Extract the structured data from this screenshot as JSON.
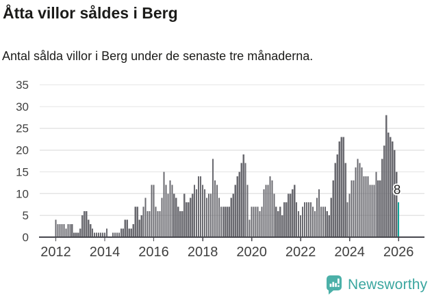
{
  "header": {
    "title": "Åtta villor såldes i Berg",
    "subtitle": "Antal sålda villor i Berg under de senaste tre månaderna."
  },
  "chart_data": {
    "type": "bar",
    "title": "Åtta villor såldes i Berg",
    "subtitle": "Antal sålda villor i Berg under de senaste tre månaderna.",
    "xlabel": "",
    "ylabel": "",
    "ylim": [
      0,
      35
    ],
    "y_ticks": [
      0,
      5,
      10,
      15,
      20,
      25,
      30,
      35
    ],
    "x_ticks": [
      2012,
      2014,
      2016,
      2018,
      2020,
      2022,
      2024,
      2026
    ],
    "grid": "horizontal",
    "legend": "none",
    "bar_color": "#69696f",
    "highlight_color": "#10a59a",
    "highlight_last_n": 1,
    "annotation": {
      "text": "8",
      "applies_to": "last-bar"
    },
    "monthly": [
      {
        "year": 2012,
        "values": [
          4,
          3,
          3,
          3,
          3,
          2,
          3,
          3,
          3,
          1,
          1,
          1
        ]
      },
      {
        "year": 2013,
        "values": [
          2,
          5,
          6,
          6,
          4,
          3,
          2,
          1,
          1,
          1,
          1,
          1
        ]
      },
      {
        "year": 2014,
        "values": [
          1,
          2,
          0,
          0,
          1,
          1,
          1,
          1,
          2,
          2,
          4,
          4
        ]
      },
      {
        "year": 2015,
        "values": [
          2,
          2,
          3,
          7,
          7,
          4,
          5,
          7,
          9,
          6,
          6,
          12
        ]
      },
      {
        "year": 2016,
        "values": [
          12,
          7,
          6,
          6,
          9,
          15,
          12,
          10,
          13,
          12,
          10,
          9
        ]
      },
      {
        "year": 2017,
        "values": [
          7,
          6,
          6,
          10,
          8,
          8,
          9,
          10,
          12,
          11,
          14,
          14
        ]
      },
      {
        "year": 2018,
        "values": [
          12,
          11,
          9,
          10,
          10,
          18,
          13,
          12,
          9,
          7,
          7,
          7
        ]
      },
      {
        "year": 2019,
        "values": [
          7,
          7,
          9,
          10,
          12,
          14,
          15,
          17,
          19,
          17,
          12,
          4
        ]
      },
      {
        "year": 2020,
        "values": [
          7,
          7,
          7,
          7,
          6,
          7,
          11,
          12,
          12,
          14,
          13,
          10
        ]
      },
      {
        "year": 2021,
        "values": [
          7,
          6,
          7,
          5,
          8,
          8,
          10,
          10,
          11,
          12,
          8,
          6
        ]
      },
      {
        "year": 2022,
        "values": [
          5,
          7,
          8,
          8,
          8,
          8,
          7,
          6,
          9,
          11,
          7,
          7
        ]
      },
      {
        "year": 2023,
        "values": [
          7,
          6,
          5,
          9,
          13,
          17,
          19,
          22,
          23,
          23,
          17,
          8
        ]
      },
      {
        "year": 2024,
        "values": [
          10,
          13,
          13,
          16,
          18,
          17,
          16,
          14,
          14,
          14,
          12,
          12
        ]
      },
      {
        "year": 2025,
        "values": [
          12,
          15,
          13,
          13,
          18,
          21,
          28,
          24,
          23,
          22,
          20,
          15
        ]
      },
      {
        "year": 2026,
        "values": [
          8
        ]
      }
    ]
  },
  "branding": {
    "name": "Newsworthy"
  },
  "colors": {
    "background": "#ffffff",
    "text": "#1b1b19",
    "axis_labels": "#3f3f3f",
    "gridline": "#e4e4e4",
    "axis_line": "#46464c",
    "bar": "#69696f",
    "highlight": "#10a59a",
    "logo": "#3aa69f"
  }
}
